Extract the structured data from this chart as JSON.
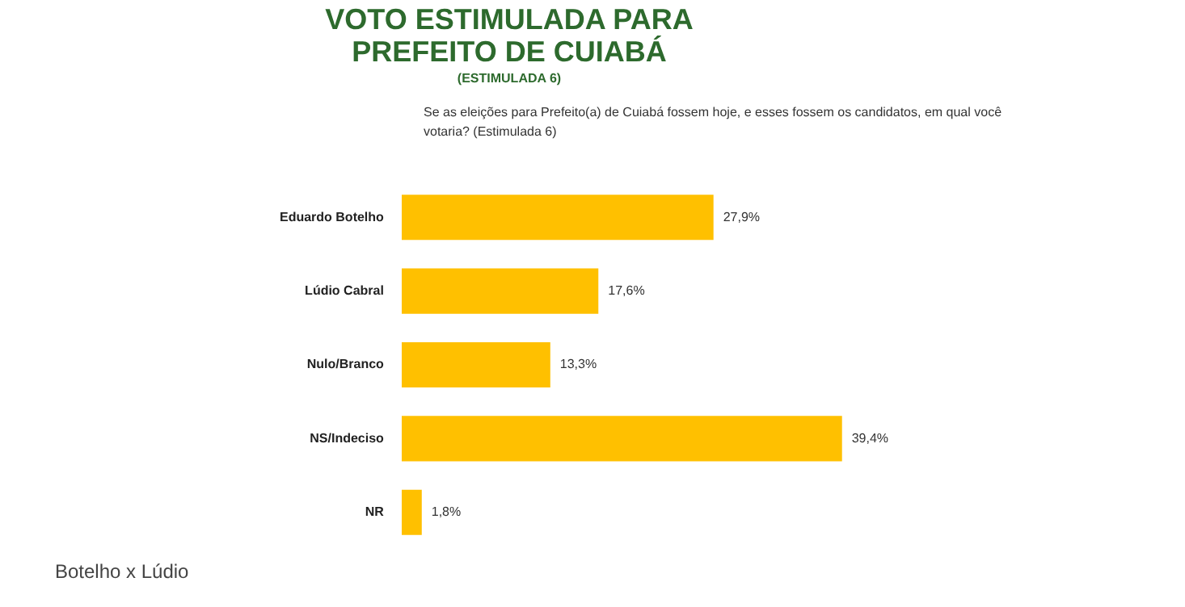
{
  "chart_data": {
    "type": "bar",
    "orientation": "horizontal",
    "title": "VOTO ESTIMULADA PARA PREFEITO DE CUIABÁ",
    "subtitle": "(ESTIMULADA 6)",
    "annotations": [
      "Se as eleições para Prefeito(a) de Cuiabá fossem hoje, e esses fossem os candidatos, em qual você votaria? (Estimulada 6)",
      "Botelho x Lúdio"
    ],
    "categories": [
      "Eduardo Botelho",
      "Lúdio Cabral",
      "Nulo/Branco",
      "NS/Indeciso",
      "NR"
    ],
    "values": [
      27.9,
      17.6,
      13.3,
      39.4,
      1.8
    ],
    "value_labels": [
      "27,9%",
      "17,6%",
      "13,3%",
      "39,4%",
      "1,8%"
    ],
    "color": "#ffc000",
    "grid": false,
    "legend": false
  }
}
